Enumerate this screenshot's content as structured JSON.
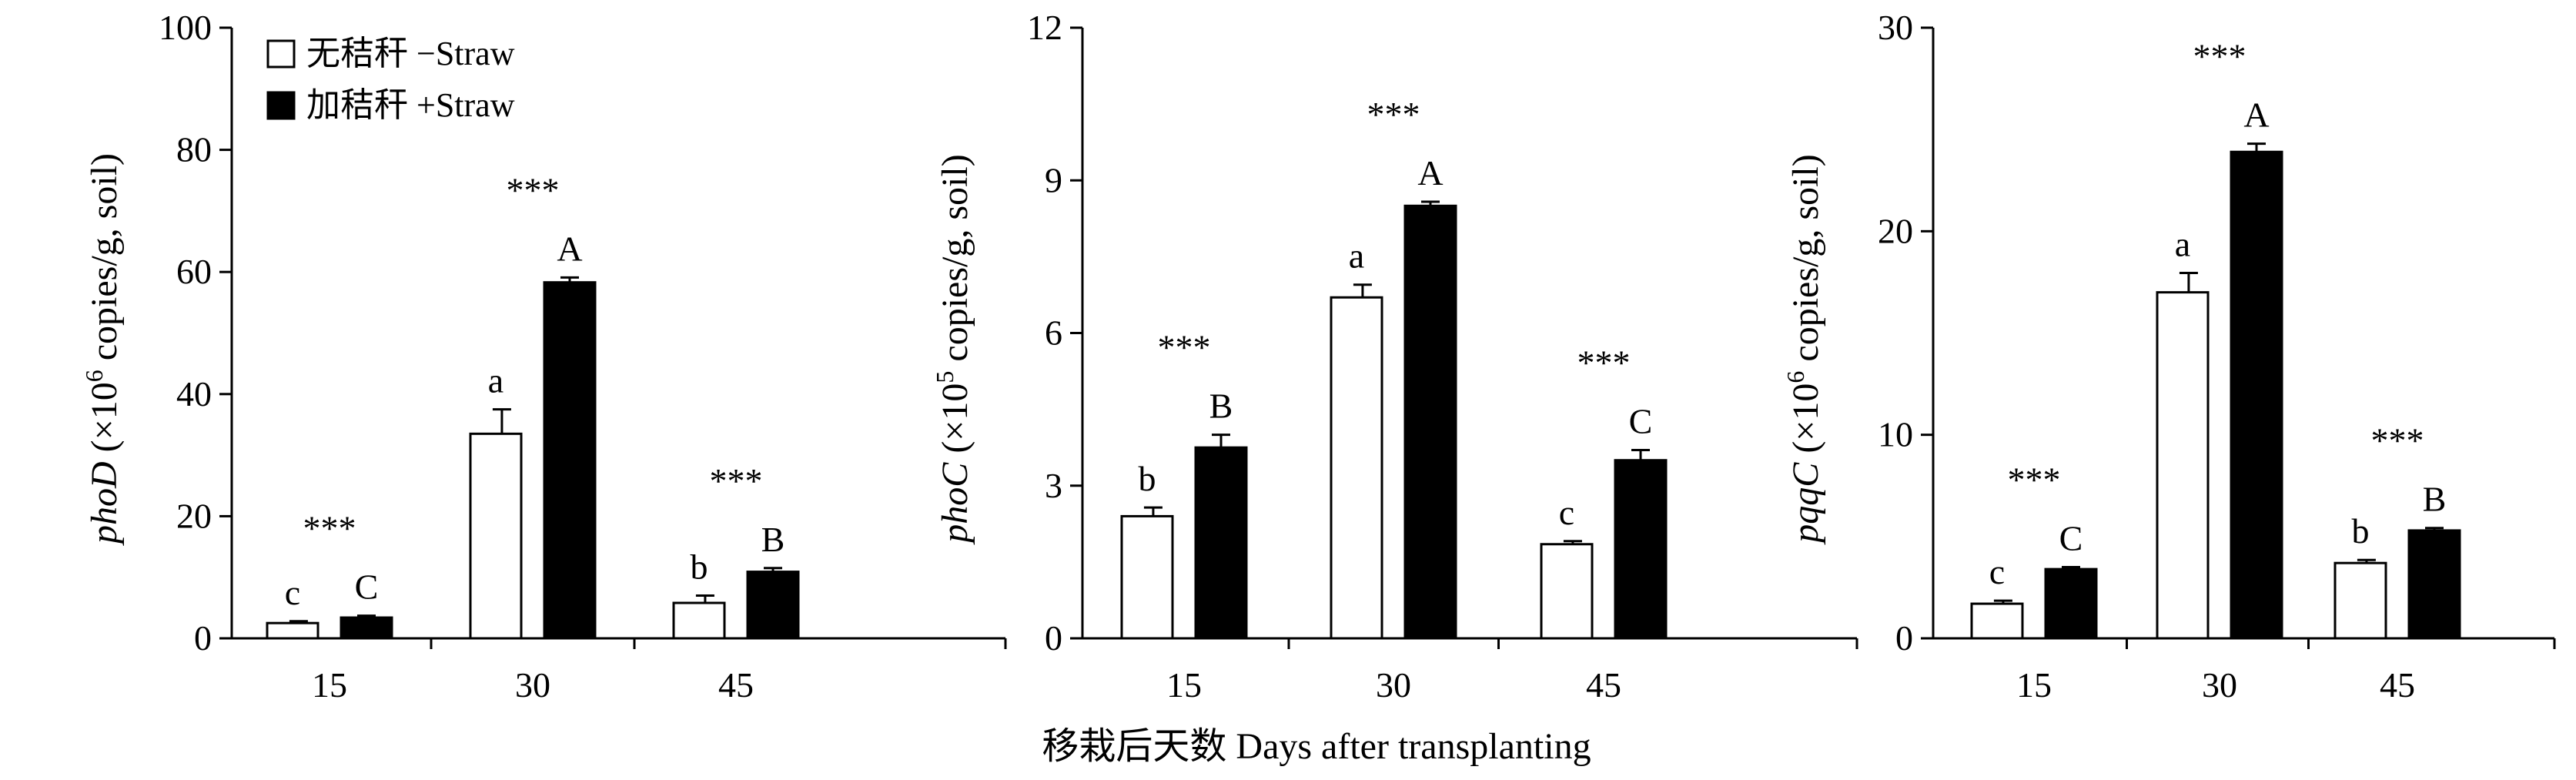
{
  "legend": [
    {
      "label": "无秸秆 −Straw",
      "fill": "#ffffff"
    },
    {
      "label": "加秸秆 +Straw",
      "fill": "#000000"
    }
  ],
  "xlabel": "移栽后天数 Days after transplanting",
  "chart_data": [
    {
      "type": "bar",
      "categories": [
        "15",
        "30",
        "45"
      ],
      "ylim": [
        0,
        100
      ],
      "yticks": [
        0,
        20,
        40,
        60,
        80,
        100
      ],
      "ylabel": {
        "gene": "phoD",
        "pre": " (×10",
        "exp": "6",
        "post": " copies/g, soil)"
      },
      "series": [
        {
          "name": "无秸秆 −Straw",
          "values": [
            2.5,
            33.5,
            5.8
          ],
          "errors": [
            0.3,
            4.0,
            1.2
          ],
          "letters": [
            "c",
            "a",
            "b"
          ]
        },
        {
          "name": "加秸秆 +Straw",
          "values": [
            3.4,
            58.3,
            10.9
          ],
          "errors": [
            0.3,
            0.8,
            0.6
          ],
          "letters": [
            "C",
            "A",
            "B"
          ]
        }
      ],
      "significance": [
        "***",
        "***",
        "***"
      ]
    },
    {
      "type": "bar",
      "categories": [
        "15",
        "30",
        "45"
      ],
      "ylim": [
        0,
        12
      ],
      "yticks": [
        0,
        3,
        6,
        9,
        12
      ],
      "ylabel": {
        "gene": "phoC",
        "pre": " (×10",
        "exp": "5",
        "post": " copies/g, soil)"
      },
      "series": [
        {
          "name": "无秸秆 −Straw",
          "values": [
            2.4,
            6.7,
            1.85
          ],
          "errors": [
            0.17,
            0.25,
            0.06
          ],
          "letters": [
            "b",
            "a",
            "c"
          ]
        },
        {
          "name": "加秸秆 +Straw",
          "values": [
            3.75,
            8.5,
            3.5
          ],
          "errors": [
            0.25,
            0.08,
            0.2
          ],
          "letters": [
            "B",
            "A",
            "C"
          ]
        }
      ],
      "significance": [
        "***",
        "***",
        "***"
      ]
    },
    {
      "type": "bar",
      "categories": [
        "15",
        "30",
        "45"
      ],
      "ylim": [
        0,
        30
      ],
      "yticks": [
        0,
        10,
        20,
        30
      ],
      "ylabel": {
        "gene": "pqqC",
        "pre": " (×10",
        "exp": "6",
        "post": " copies/g, soil)"
      },
      "series": [
        {
          "name": "无秸秆 −Straw",
          "values": [
            1.7,
            17.0,
            3.7
          ],
          "errors": [
            0.15,
            0.95,
            0.15
          ],
          "letters": [
            "c",
            "a",
            "b"
          ]
        },
        {
          "name": "加秸秆 +Straw",
          "values": [
            3.4,
            23.9,
            5.3
          ],
          "errors": [
            0.1,
            0.4,
            0.12
          ],
          "letters": [
            "C",
            "A",
            "B"
          ]
        }
      ],
      "significance": [
        "***",
        "***",
        "***"
      ]
    }
  ]
}
